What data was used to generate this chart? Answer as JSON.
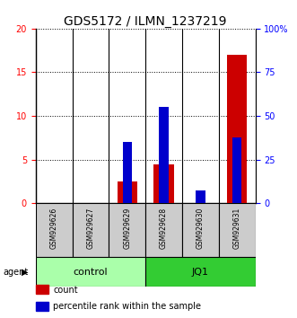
{
  "title": "GDS5172 / ILMN_1237219",
  "samples": [
    "GSM929626",
    "GSM929627",
    "GSM929629",
    "GSM929628",
    "GSM929630",
    "GSM929631"
  ],
  "count_values": [
    0,
    0,
    2.5,
    4.4,
    0,
    17.0
  ],
  "percentile_values": [
    0,
    0,
    7,
    11,
    1.5,
    7.5
  ],
  "ylim_left": [
    0,
    20
  ],
  "ylim_right": [
    0,
    100
  ],
  "yticks_left": [
    0,
    5,
    10,
    15,
    20
  ],
  "yticks_right": [
    0,
    25,
    50,
    75,
    100
  ],
  "ytick_labels_right": [
    "0",
    "25",
    "50",
    "75",
    "100%"
  ],
  "groups": [
    {
      "label": "control",
      "indices": [
        0,
        1,
        2
      ],
      "color": "#AAFFAA"
    },
    {
      "label": "JQ1",
      "indices": [
        3,
        4,
        5
      ],
      "color": "#33CC33"
    }
  ],
  "bar_color_red": "#CC0000",
  "bar_color_blue": "#0000CC",
  "red_bar_width": 0.55,
  "blue_bar_width": 0.25,
  "agent_label": "agent",
  "legend_items": [
    {
      "label": "count",
      "color": "#CC0000"
    },
    {
      "label": "percentile rank within the sample",
      "color": "#0000CC"
    }
  ],
  "title_fontsize": 10,
  "tick_fontsize": 7,
  "label_fontsize": 8,
  "sample_fontsize": 5.5,
  "legend_fontsize": 7
}
